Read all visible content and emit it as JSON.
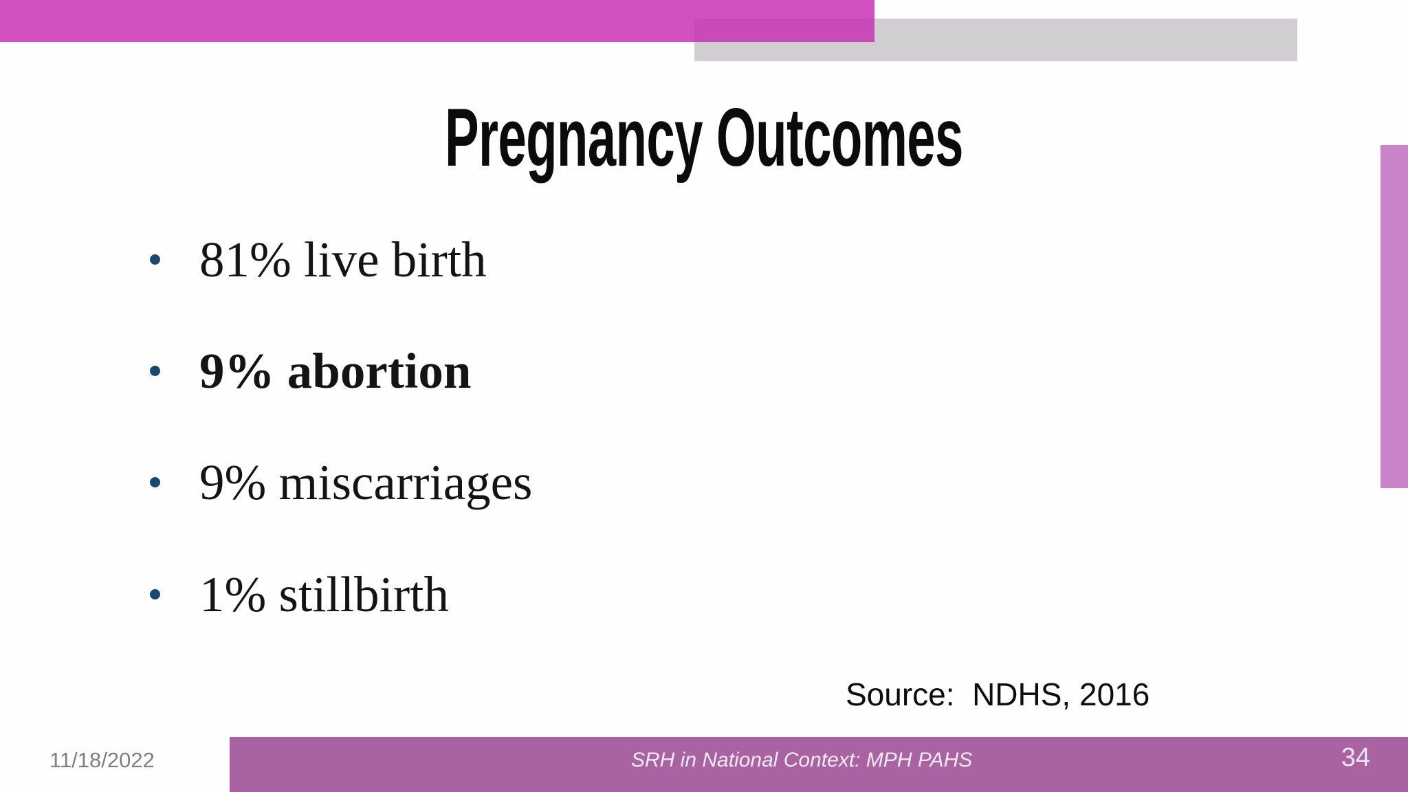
{
  "slide": {
    "title": "Pregnancy Outcomes",
    "bullets": [
      {
        "text": "81% live birth",
        "bold": false
      },
      {
        "text": "9% abortion",
        "bold": true
      },
      {
        "text": "9% miscarriages",
        "bold": false
      },
      {
        "text": "1% stillbirth",
        "bold": false
      }
    ],
    "source_label": "Source:  NDHS, 2016",
    "footer": {
      "date": "11/18/2022",
      "center_text": "SRH in National Context: MPH PAHS",
      "page_number": "34"
    },
    "colors": {
      "top_bar_pink": "#d350c2",
      "overlap_pink": "#c84bb7",
      "gray_bar": "#d1ced2",
      "right_strip": "#c983c9",
      "footer_bar": "#a963a3",
      "bullet_dot": "#1a476c",
      "date_gray": "#7f7f7f"
    }
  }
}
